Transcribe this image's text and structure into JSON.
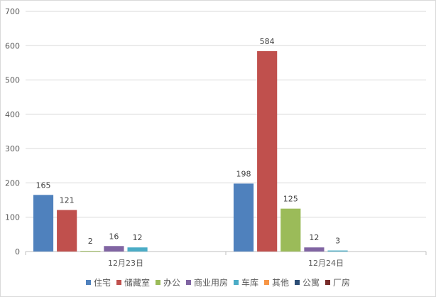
{
  "chart_data": {
    "type": "bar",
    "categories": [
      "12月23日",
      "12月24日"
    ],
    "ylim": [
      0,
      700
    ],
    "yticks": [
      0,
      100,
      200,
      300,
      400,
      500,
      600,
      700
    ],
    "grid": true,
    "legend_position": "bottom",
    "series": [
      {
        "name": "住宅",
        "color": "#4F81BD",
        "values": [
          165,
          198
        ]
      },
      {
        "name": "储藏室",
        "color": "#C0504D",
        "values": [
          121,
          584
        ]
      },
      {
        "name": "办公",
        "color": "#9BBB59",
        "values": [
          2,
          125
        ]
      },
      {
        "name": "商业用房",
        "color": "#8064A2",
        "values": [
          16,
          12
        ]
      },
      {
        "name": "车库",
        "color": "#4BACC6",
        "values": [
          12,
          3
        ]
      },
      {
        "name": "其他",
        "color": "#F79646",
        "values": [
          null,
          null
        ]
      },
      {
        "name": "公寓",
        "color": "#2C4D75",
        "values": [
          null,
          null
        ]
      },
      {
        "name": "厂房",
        "color": "#772C2A",
        "values": [
          null,
          null
        ]
      }
    ]
  }
}
